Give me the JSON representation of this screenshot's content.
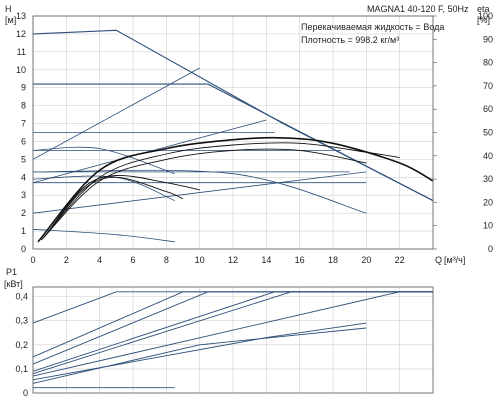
{
  "chart_data": [
    {
      "type": "line",
      "title": "MAGNA1 40-120 F, 50Hz",
      "annotations": [
        "Перекачиваемая жидкость = Вода",
        "Плотность = 998.2 кг/м³"
      ],
      "y_left_label": "H",
      "y_left_unit": "[м]",
      "y_right_label": "eta",
      "y_right_unit": "[%]",
      "x_label": "Q",
      "x_unit": "[м³/ч]",
      "xlim": [
        0,
        24
      ],
      "ylim": [
        0,
        13
      ],
      "y_right_lim": [
        0,
        100
      ],
      "x_ticks": [
        "0",
        "2",
        "4",
        "6",
        "8",
        "10",
        "12",
        "14",
        "16",
        "18",
        "20",
        "22"
      ],
      "y_ticks": [
        "0",
        "1",
        "2",
        "3",
        "4",
        "5",
        "6",
        "7",
        "8",
        "9",
        "10",
        "11",
        "12",
        "13"
      ],
      "y_right_ticks": [
        "0",
        "10",
        "20",
        "30",
        "40",
        "50",
        "60",
        "70",
        "80",
        "90",
        "100"
      ],
      "grid": true,
      "series": [
        {
          "kind": "max-curve",
          "x": [
            0,
            5,
            15,
            24
          ],
          "y": [
            12.0,
            12.2,
            7.0,
            2.7
          ]
        },
        {
          "kind": "prop-pressure",
          "x": [
            0,
            10.5,
            24
          ],
          "y": [
            9.2,
            9.2,
            2.7
          ]
        },
        {
          "kind": "const-pressure",
          "x": [
            0,
            14.5
          ],
          "y": [
            6.5,
            6.5
          ]
        },
        {
          "kind": "const-pressure",
          "x": [
            0,
            18.5
          ],
          "y": [
            5.5,
            5.5
          ]
        },
        {
          "kind": "const-pressure",
          "x": [
            0,
            19
          ],
          "y": [
            4.3,
            4.3
          ]
        },
        {
          "kind": "const-pressure",
          "x": [
            0,
            20
          ],
          "y": [
            3.7,
            3.7
          ]
        },
        {
          "kind": "system",
          "x": [
            0,
            10
          ],
          "y": [
            5.0,
            10.1
          ]
        },
        {
          "kind": "system",
          "x": [
            0,
            14
          ],
          "y": [
            3.7,
            7.2
          ]
        },
        {
          "kind": "system",
          "x": [
            0,
            20
          ],
          "y": [
            2.0,
            4.3
          ]
        },
        {
          "kind": "low-curve",
          "x": [
            0,
            4,
            8.5
          ],
          "y": [
            5.5,
            5.6,
            4.2
          ]
        },
        {
          "kind": "low-curve",
          "x": [
            0,
            5,
            8.5
          ],
          "y": [
            1.1,
            0.8,
            0.4
          ]
        },
        {
          "kind": "low-curve",
          "x": [
            0,
            5,
            8.5
          ],
          "y": [
            3.9,
            4.0,
            2.7
          ]
        },
        {
          "kind": "low-curve",
          "x": [
            0,
            12,
            20
          ],
          "y": [
            4.3,
            4.2,
            2.0
          ]
        },
        {
          "kind": "efficiency",
          "x": [
            0.3,
            4,
            8,
            12,
            15,
            18,
            22,
            24
          ],
          "y": [
            0.4,
            4.4,
            5.6,
            6.1,
            6.2,
            5.9,
            4.8,
            3.8
          ]
        },
        {
          "kind": "efficiency",
          "x": [
            0.5,
            4,
            8,
            12,
            16,
            20,
            22
          ],
          "y": [
            0.5,
            4.0,
            5.3,
            5.8,
            5.9,
            5.4,
            5.1
          ]
        },
        {
          "kind": "efficiency",
          "x": [
            0.6,
            4,
            8,
            12,
            16,
            20
          ],
          "y": [
            0.6,
            3.8,
            5.0,
            5.5,
            5.5,
            4.8
          ]
        },
        {
          "kind": "efficiency",
          "x": [
            0.7,
            3,
            5,
            8,
            10
          ],
          "y": [
            0.7,
            3.4,
            4.1,
            3.7,
            3.3
          ]
        },
        {
          "kind": "efficiency",
          "x": [
            0.8,
            3,
            5,
            8,
            9
          ],
          "y": [
            0.8,
            3.3,
            4.0,
            3.2,
            2.8
          ]
        }
      ]
    },
    {
      "type": "line",
      "y_label": "P1",
      "y_unit": "[кВт]",
      "xlim": [
        0,
        24
      ],
      "ylim": [
        0,
        0.44
      ],
      "y_ticks": [
        "0",
        "0,1",
        "0,2",
        "0,3",
        "0,4"
      ],
      "grid": true,
      "series": [
        {
          "x": [
            0,
            5,
            24
          ],
          "y": [
            0.29,
            0.42,
            0.42
          ]
        },
        {
          "x": [
            0,
            9,
            24
          ],
          "y": [
            0.15,
            0.42,
            0.42
          ]
        },
        {
          "x": [
            0,
            10.5,
            24
          ],
          "y": [
            0.12,
            0.42,
            0.42
          ]
        },
        {
          "x": [
            0,
            14.5,
            24
          ],
          "y": [
            0.09,
            0.42,
            0.42
          ]
        },
        {
          "x": [
            0,
            15.5,
            24
          ],
          "y": [
            0.08,
            0.42,
            0.42
          ]
        },
        {
          "x": [
            0,
            22,
            24
          ],
          "y": [
            0.07,
            0.42,
            0.42
          ]
        },
        {
          "x": [
            0,
            14,
            20
          ],
          "y": [
            0.055,
            0.23,
            0.29
          ]
        },
        {
          "x": [
            0,
            10,
            20
          ],
          "y": [
            0.04,
            0.2,
            0.27
          ]
        },
        {
          "x": [
            0,
            8.5
          ],
          "y": [
            0.022,
            0.022
          ]
        }
      ]
    }
  ]
}
